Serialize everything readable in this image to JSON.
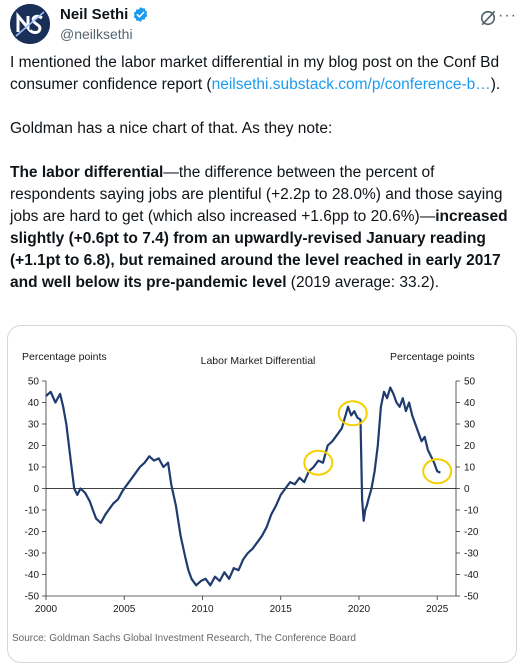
{
  "author": {
    "name": "Neil Sethi",
    "handle": "@neilksethi",
    "avatar_icon": "ns-logo-icon",
    "verified_icon": "verified-badge-icon"
  },
  "actions": {
    "grok_icon": "grok-icon",
    "more_label": "···"
  },
  "tweet": {
    "p1_text": "I mentioned the labor market differential in my blog post on the Conf Bd consumer confidence report (",
    "p1_link": "neilsethi.substack.com/p/conference-b…",
    "p1_end": ").",
    "p2": "Goldman has a nice chart of that.  As they note:",
    "p3_b1": "The labor differential",
    "p3_t1": "—the difference between the percent of respondents saying jobs are plentiful (+2.2p to 28.0%) and those saying jobs are hard to get (which also increased +1.6pp to 20.6%)—",
    "p3_b2": "increased slightly (+0.6pt to 7.4) from an upwardly-revised January reading (+1.1pt to 6.8), but remained around the level reached in early 2017 and well below its pre-pandemic level",
    "p3_t2": " (2019 average: 33.2)."
  },
  "colors": {
    "line": "#1f3b70",
    "highlight": "#f5d000",
    "link": "#1d9bf0",
    "zero_line": "#000000"
  },
  "chart_data": {
    "type": "line",
    "title": "Labor Market Differential",
    "ylabel_left": "Percentage points",
    "ylabel_right": "Percentage points",
    "source": "Source: Goldman Sachs Global Investment Research, The Conference Board",
    "ylim": [
      -50,
      50
    ],
    "xlim": [
      2000,
      2026.2
    ],
    "xticks": [
      2000,
      2005,
      2010,
      2015,
      2020,
      2025
    ],
    "yticks": [
      50,
      40,
      30,
      20,
      10,
      0,
      -10,
      -20,
      -30,
      -40,
      -50
    ],
    "grid": false,
    "series": [
      {
        "x": [
          2000.0,
          2000.3,
          2000.6,
          2000.9,
          2001.1,
          2001.3,
          2001.6,
          2001.8,
          2002.0,
          2002.2,
          2002.5,
          2002.8,
          2003.0,
          2003.2,
          2003.5,
          2003.8,
          2004.0,
          2004.3,
          2004.6,
          2004.9,
          2005.2,
          2005.5,
          2005.8,
          2006.0,
          2006.3,
          2006.6,
          2006.9,
          2007.2,
          2007.5,
          2007.8,
          2008.0,
          2008.3,
          2008.6,
          2008.9,
          2009.1,
          2009.3,
          2009.6,
          2009.9,
          2010.2,
          2010.5,
          2010.8,
          2011.1,
          2011.4,
          2011.7,
          2012.0,
          2012.3,
          2012.6,
          2012.9,
          2013.2,
          2013.5,
          2013.8,
          2014.1,
          2014.4,
          2014.7,
          2015.0,
          2015.3,
          2015.6,
          2015.9,
          2016.2,
          2016.5,
          2016.8,
          2017.1,
          2017.4,
          2017.7,
          2018.0,
          2018.3,
          2018.6,
          2018.9,
          2019.1,
          2019.3,
          2019.5,
          2019.7,
          2019.9,
          2020.1,
          2020.2,
          2020.3,
          2020.4,
          2020.5,
          2020.6,
          2020.8,
          2021.0,
          2021.2,
          2021.4,
          2021.6,
          2021.8,
          2022.0,
          2022.2,
          2022.4,
          2022.6,
          2022.8,
          2023.0,
          2023.2,
          2023.4,
          2023.6,
          2023.8,
          2024.0,
          2024.2,
          2024.4,
          2024.6,
          2024.8,
          2025.0,
          2025.2
        ],
        "y": [
          43,
          45,
          40,
          44,
          38,
          30,
          12,
          0,
          -3,
          0,
          -2,
          -6,
          -10,
          -14,
          -16,
          -12,
          -10,
          -7,
          -5,
          -1,
          2,
          5,
          8,
          10,
          12,
          15,
          13,
          14,
          10,
          12,
          2,
          -8,
          -22,
          -32,
          -38,
          -42,
          -45,
          -43,
          -42,
          -45,
          -41,
          -43,
          -39,
          -42,
          -37,
          -38,
          -33,
          -30,
          -28,
          -25,
          -22,
          -18,
          -12,
          -8,
          -3,
          0,
          3,
          2,
          5,
          3,
          8,
          10,
          13,
          12,
          20,
          22,
          25,
          28,
          33,
          38,
          34,
          36,
          33,
          32,
          -5,
          -15,
          -10,
          -8,
          -5,
          0,
          8,
          20,
          38,
          45,
          42,
          47,
          44,
          40,
          38,
          42,
          36,
          40,
          34,
          30,
          26,
          22,
          24,
          18,
          15,
          12,
          8,
          7.4
        ]
      }
    ],
    "highlights": [
      {
        "x": 2017.4,
        "y": 12
      },
      {
        "x": 2019.6,
        "y": 35
      },
      {
        "x": 2025.0,
        "y": 8
      }
    ]
  }
}
